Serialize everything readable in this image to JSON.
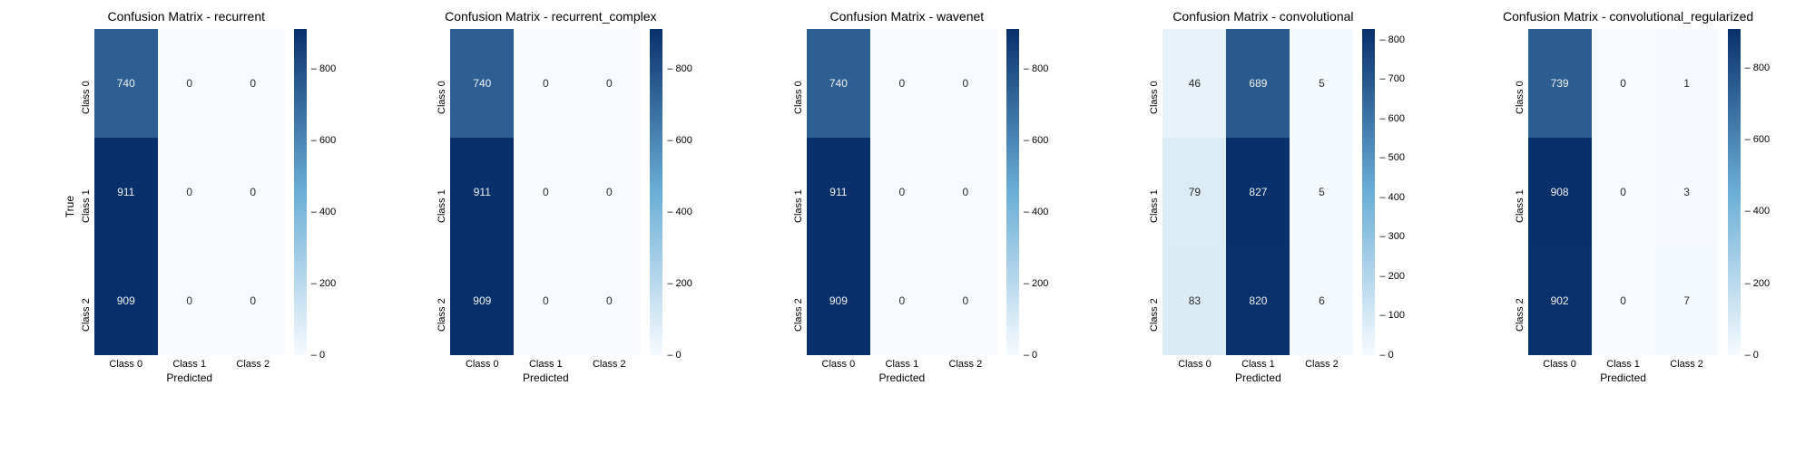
{
  "class_labels": [
    "Class 0",
    "Class 1",
    "Class 2"
  ],
  "xlabel": "Predicted",
  "ylabel": "True",
  "heatmap_width": 210,
  "heatmap_height": 360,
  "title_fontsize": 14,
  "label_fontsize": 12,
  "tick_fontsize": 11,
  "cell_fontsize": 12,
  "colormap": {
    "name": "Blues",
    "low": "#f7fbff",
    "mid": "#6baed6",
    "high": "#08306b"
  },
  "light_text": "#f0f0f0",
  "dark_text": "#2a2a2a",
  "panels": [
    {
      "title": "Confusion Matrix - recurrent",
      "show_ylabel": true,
      "data": [
        [
          740,
          0,
          0
        ],
        [
          911,
          0,
          0
        ],
        [
          909,
          0,
          0
        ]
      ],
      "vmin": 0,
      "vmax": 911,
      "cbar_ticks": [
        0,
        200,
        400,
        600,
        800
      ]
    },
    {
      "title": "Confusion Matrix - recurrent_complex",
      "show_ylabel": false,
      "data": [
        [
          740,
          0,
          0
        ],
        [
          911,
          0,
          0
        ],
        [
          909,
          0,
          0
        ]
      ],
      "vmin": 0,
      "vmax": 911,
      "cbar_ticks": [
        0,
        200,
        400,
        600,
        800
      ]
    },
    {
      "title": "Confusion Matrix - wavenet",
      "show_ylabel": false,
      "data": [
        [
          740,
          0,
          0
        ],
        [
          911,
          0,
          0
        ],
        [
          909,
          0,
          0
        ]
      ],
      "vmin": 0,
      "vmax": 911,
      "cbar_ticks": [
        0,
        200,
        400,
        600,
        800
      ]
    },
    {
      "title": "Confusion Matrix - convolutional",
      "show_ylabel": false,
      "data": [
        [
          46,
          689,
          5
        ],
        [
          79,
          827,
          5
        ],
        [
          83,
          820,
          6
        ]
      ],
      "vmin": 0,
      "vmax": 827,
      "cbar_ticks": [
        0,
        100,
        200,
        300,
        400,
        500,
        600,
        700,
        800
      ]
    },
    {
      "title": "Confusion Matrix - convolutional_regularized",
      "show_ylabel": false,
      "data": [
        [
          739,
          0,
          1
        ],
        [
          908,
          0,
          3
        ],
        [
          902,
          0,
          7
        ]
      ],
      "vmin": 0,
      "vmax": 908,
      "cbar_ticks": [
        0,
        200,
        400,
        600,
        800
      ]
    }
  ]
}
